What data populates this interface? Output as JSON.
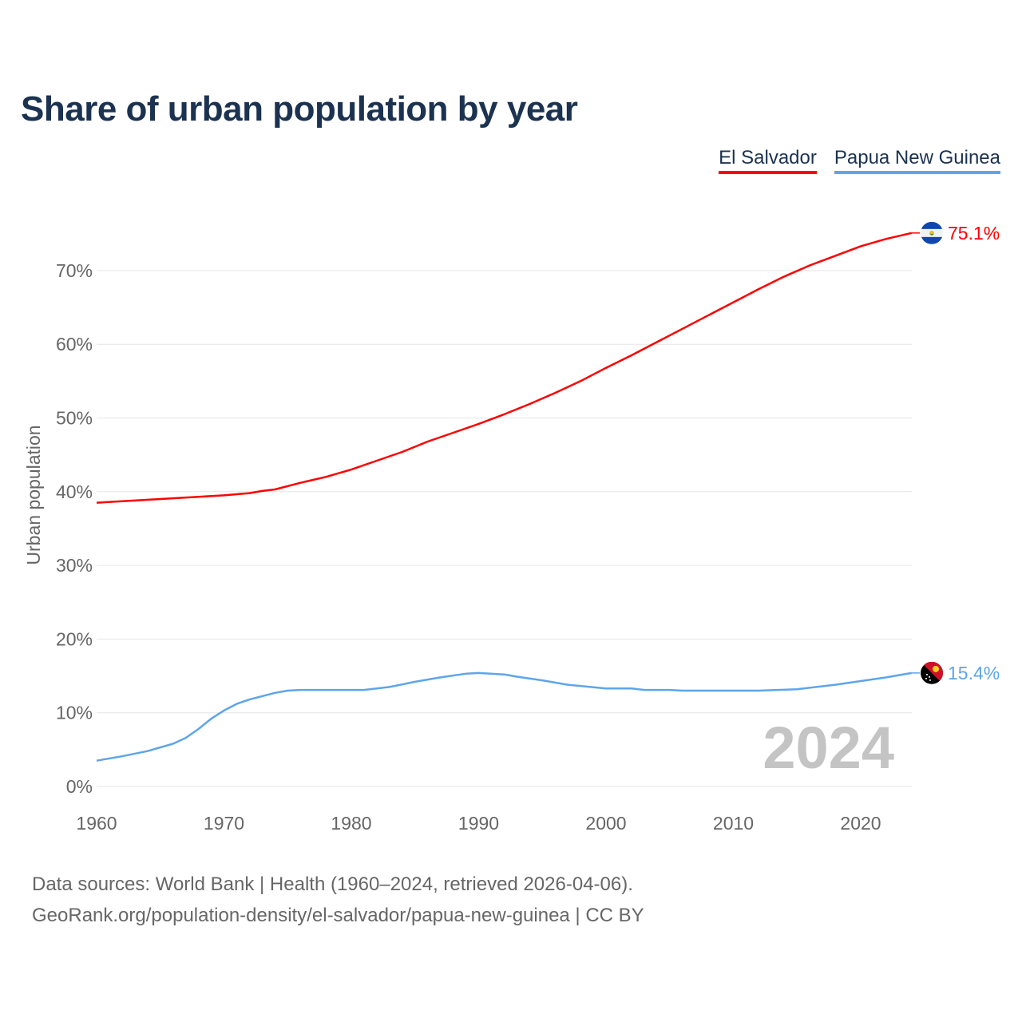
{
  "chart_data": {
    "type": "line",
    "title": "Share of urban population by year",
    "ylabel": "Urban population",
    "xlabel": "",
    "xlim": [
      1960,
      2024
    ],
    "ylim": [
      0,
      78
    ],
    "x_ticks": [
      1960,
      1970,
      1980,
      1990,
      2000,
      2010,
      2020
    ],
    "x_tick_labels": [
      "1960",
      "1970",
      "1980",
      "1990",
      "2000",
      "2010",
      "2020"
    ],
    "y_ticks": [
      0,
      10,
      20,
      30,
      40,
      50,
      60,
      70
    ],
    "y_tick_labels": [
      "0%",
      "10%",
      "20%",
      "30%",
      "40%",
      "50%",
      "60%",
      "70%"
    ],
    "grid": true,
    "legend_position": "top-right",
    "year_watermark": "2024",
    "series": [
      {
        "name": "El Salvador",
        "color": "#ff0000",
        "end_label": "75.1%",
        "flag": "el-salvador-flag",
        "points": [
          [
            1960,
            38.5
          ],
          [
            1965,
            39.0
          ],
          [
            1970,
            39.5
          ],
          [
            1972,
            39.8
          ],
          [
            1973,
            40.1
          ],
          [
            1974,
            40.3
          ],
          [
            1976,
            41.2
          ],
          [
            1978,
            42.0
          ],
          [
            1980,
            43.0
          ],
          [
            1982,
            44.2
          ],
          [
            1984,
            45.4
          ],
          [
            1986,
            46.8
          ],
          [
            1988,
            48.0
          ],
          [
            1990,
            49.2
          ],
          [
            1992,
            50.5
          ],
          [
            1994,
            51.9
          ],
          [
            1996,
            53.4
          ],
          [
            1998,
            55.0
          ],
          [
            2000,
            56.8
          ],
          [
            2002,
            58.5
          ],
          [
            2004,
            60.3
          ],
          [
            2006,
            62.1
          ],
          [
            2008,
            63.9
          ],
          [
            2010,
            65.7
          ],
          [
            2012,
            67.5
          ],
          [
            2014,
            69.2
          ],
          [
            2016,
            70.7
          ],
          [
            2018,
            72.0
          ],
          [
            2020,
            73.3
          ],
          [
            2022,
            74.3
          ],
          [
            2024,
            75.1
          ]
        ]
      },
      {
        "name": "Papua New Guinea",
        "color": "#5ea5ea",
        "end_label": "15.4%",
        "flag": "papua-new-guinea-flag",
        "points": [
          [
            1960,
            3.5
          ],
          [
            1962,
            4.1
          ],
          [
            1964,
            4.8
          ],
          [
            1966,
            5.8
          ],
          [
            1967,
            6.6
          ],
          [
            1968,
            7.8
          ],
          [
            1969,
            9.2
          ],
          [
            1970,
            10.3
          ],
          [
            1971,
            11.2
          ],
          [
            1972,
            11.8
          ],
          [
            1974,
            12.7
          ],
          [
            1975,
            13.0
          ],
          [
            1976,
            13.1
          ],
          [
            1981,
            13.1
          ],
          [
            1983,
            13.5
          ],
          [
            1985,
            14.2
          ],
          [
            1987,
            14.8
          ],
          [
            1989,
            15.3
          ],
          [
            1990,
            15.4
          ],
          [
            1992,
            15.2
          ],
          [
            1993,
            14.9
          ],
          [
            1995,
            14.4
          ],
          [
            1997,
            13.8
          ],
          [
            2000,
            13.3
          ],
          [
            2002,
            13.3
          ],
          [
            2003,
            13.1
          ],
          [
            2005,
            13.1
          ],
          [
            2006,
            13.0
          ],
          [
            2012,
            13.0
          ],
          [
            2015,
            13.2
          ],
          [
            2018,
            13.8
          ],
          [
            2020,
            14.3
          ],
          [
            2022,
            14.8
          ],
          [
            2024,
            15.4
          ]
        ]
      }
    ]
  },
  "footer": {
    "line1": "Data sources: World Bank | Health (1960–2024, retrieved 2026-04-06).",
    "line2": "GeoRank.org/population-density/el-salvador/papua-new-guinea | CC BY"
  }
}
